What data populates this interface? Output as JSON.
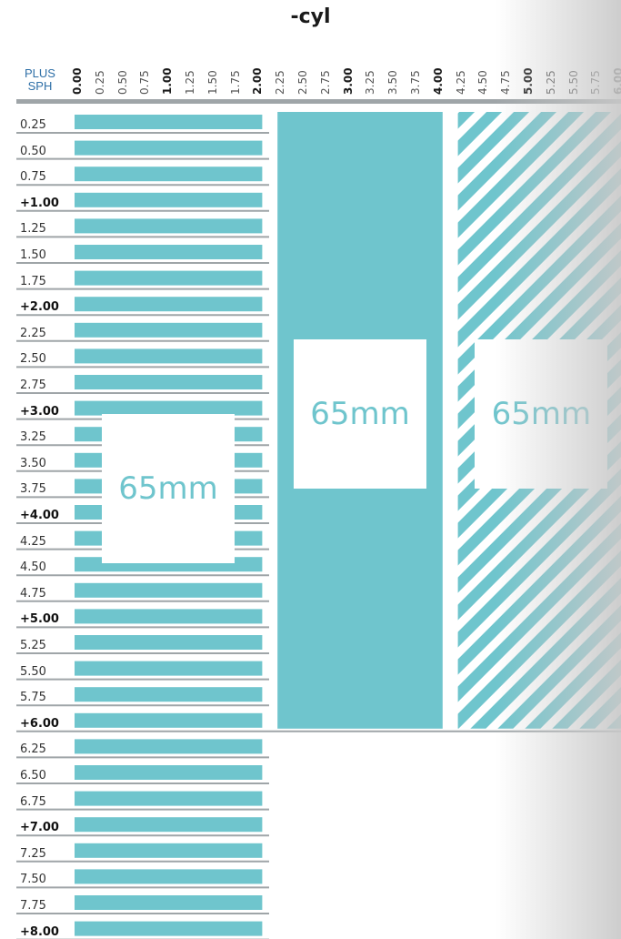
{
  "chart_data": {
    "type": "table",
    "title": "-cyl",
    "header_top": "PLUS",
    "header_bottom": "SPH",
    "cyl_values": [
      "0.00",
      "0.25",
      "0.50",
      "0.75",
      "1.00",
      "1.25",
      "1.50",
      "1.75",
      "2.00",
      "2.25",
      "2.50",
      "2.75",
      "3.00",
      "3.25",
      "3.50",
      "3.75",
      "4.00",
      "4.25",
      "4.50",
      "4.75",
      "5.00",
      "5.25",
      "5.50",
      "5.75",
      "6.00"
    ],
    "cyl_major": [
      "0.00",
      "1.00",
      "2.00",
      "3.00",
      "4.00",
      "5.00",
      "6.00"
    ],
    "sph_values": [
      "0.25",
      "0.50",
      "0.75",
      "+1.00",
      "1.25",
      "1.50",
      "1.75",
      "+2.00",
      "2.25",
      "2.50",
      "2.75",
      "+3.00",
      "3.25",
      "3.50",
      "3.75",
      "+4.00",
      "4.25",
      "4.50",
      "4.75",
      "+5.00",
      "5.25",
      "5.50",
      "5.75",
      "+6.00",
      "6.25",
      "6.50",
      "6.75",
      "+7.00",
      "7.25",
      "7.50",
      "7.75",
      "+8.00"
    ],
    "regions": [
      {
        "pattern": "striped",
        "cyl_range": [
          0.0,
          2.0
        ],
        "sph_range": [
          0.25,
          8.0
        ],
        "diameter_label": "65mm"
      },
      {
        "pattern": "solid",
        "cyl_range": [
          2.25,
          4.0
        ],
        "sph_range": [
          0.25,
          6.0
        ],
        "diameter_label": "65mm"
      },
      {
        "pattern": "diagonal",
        "cyl_range": [
          4.25,
          6.0
        ],
        "sph_range": [
          0.25,
          6.0
        ],
        "diameter_label": "65mm"
      }
    ],
    "colors": {
      "fill": "#6fc5cd",
      "rule": "#9fa5a8",
      "header_text": "#2e6fa7"
    }
  }
}
